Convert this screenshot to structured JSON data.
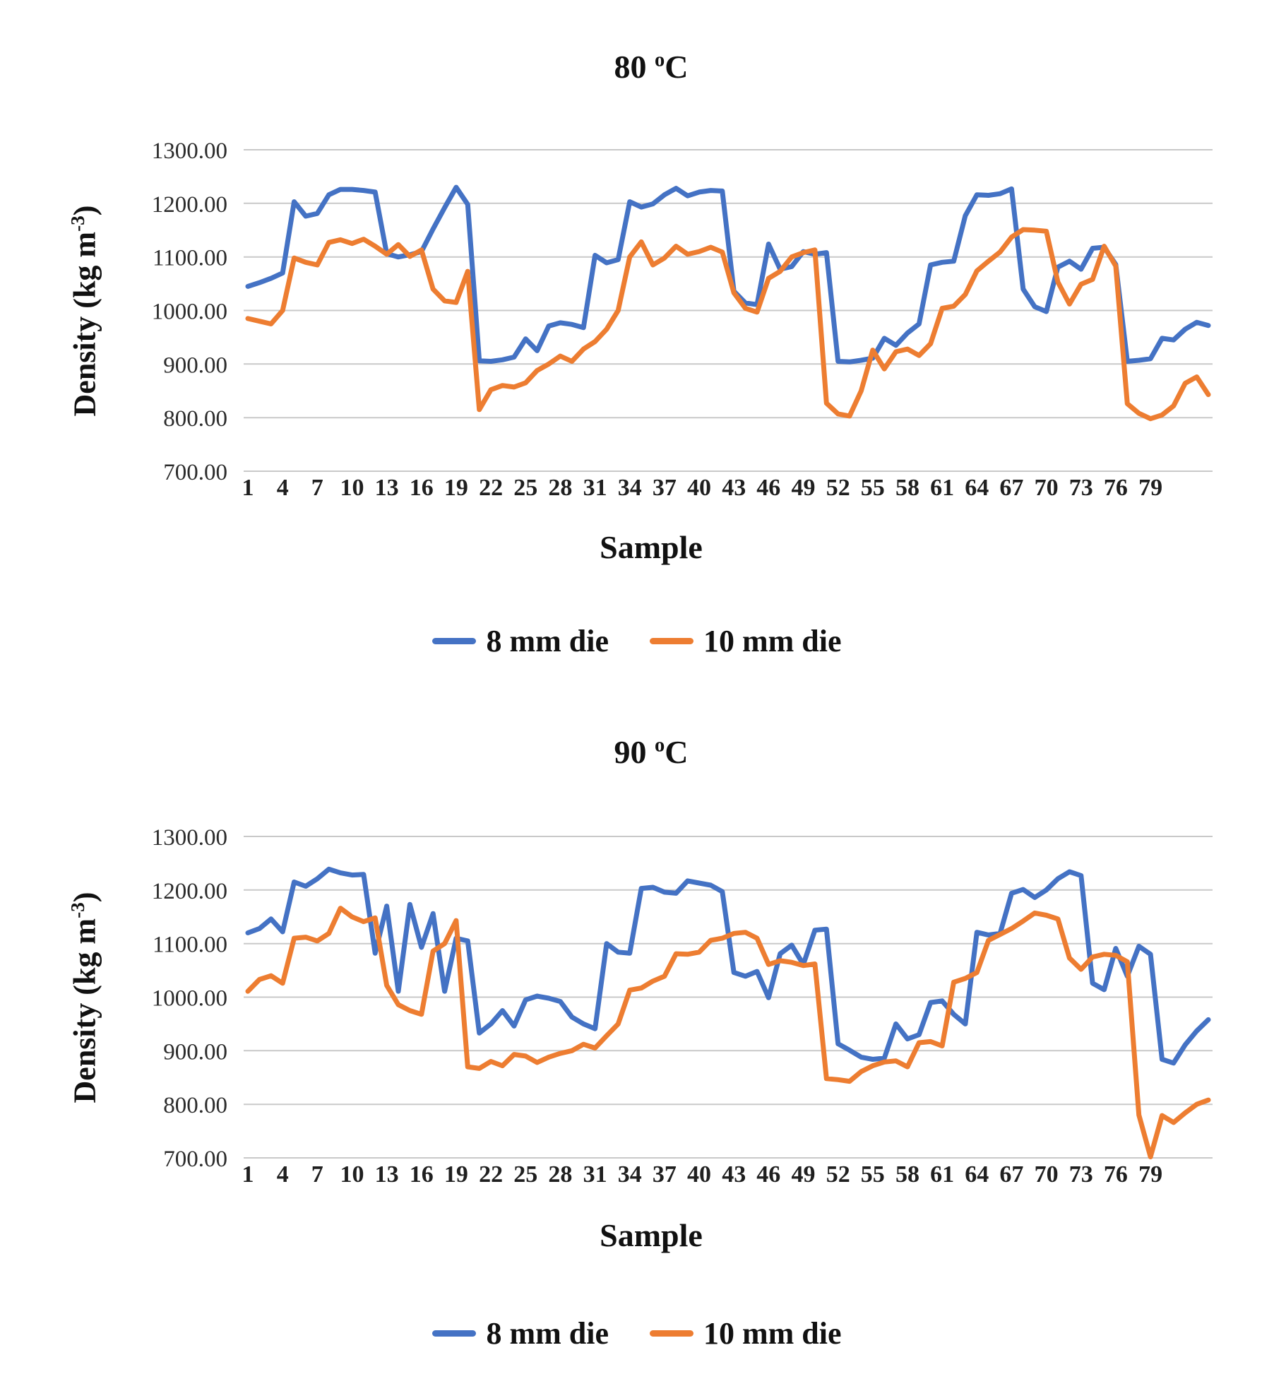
{
  "charts": [
    {
      "title_prefix": "80 ",
      "title_sup": "o",
      "title_suffix": "C",
      "y_axis": {
        "prefix": "Density (kg m",
        "sup": "-3",
        "suffix": ")"
      },
      "x_axis": {
        "label": "Sample"
      }
    },
    {
      "title_prefix": "90 ",
      "title_sup": "o",
      "title_suffix": "C",
      "y_axis": {
        "prefix": "Density (kg m",
        "sup": "-3",
        "suffix": ")"
      },
      "x_axis": {
        "label": "Sample"
      }
    }
  ],
  "chart_data": [
    {
      "type": "line",
      "title": "80 °C",
      "xlabel": "Sample",
      "ylabel": "Density (kg m-3)",
      "ylim": [
        700,
        1300
      ],
      "ytick_step": 100,
      "grid": true,
      "legend_position": "bottom",
      "x_ticks": [
        1,
        4,
        7,
        10,
        13,
        16,
        19,
        22,
        25,
        28,
        31,
        34,
        37,
        40,
        43,
        46,
        49,
        52,
        55,
        58,
        61,
        64,
        67,
        70,
        73,
        76,
        79
      ],
      "series": [
        {
          "name": "8 mm die",
          "color": "#4472C4",
          "values": [
            1045,
            1052,
            1060,
            1070,
            1203,
            1176,
            1181,
            1216,
            1226,
            1226,
            1224,
            1221,
            1106,
            1100,
            1104,
            1110,
            1152,
            1192,
            1230,
            1198,
            906,
            905,
            908,
            913,
            947,
            925,
            971,
            977,
            974,
            968,
            1103,
            1089,
            1095,
            1203,
            1193,
            1199,
            1216,
            1228,
            1214,
            1221,
            1224,
            1223,
            1036,
            1014,
            1011,
            1124,
            1077,
            1082,
            1110,
            1105,
            1108,
            905,
            904,
            907,
            911,
            948,
            935,
            958,
            975,
            1085,
            1090,
            1092,
            1177,
            1216,
            1215,
            1218,
            1227,
            1040,
            1007,
            998,
            1081,
            1092,
            1077,
            1116,
            1118,
            1086,
            905,
            907,
            910,
            948,
            945,
            965,
            978,
            972
          ]
        },
        {
          "name": "10 mm die",
          "color": "#ED7D31",
          "values": [
            985,
            980,
            975,
            1000,
            1098,
            1090,
            1085,
            1127,
            1132,
            1125,
            1133,
            1120,
            1105,
            1123,
            1101,
            1113,
            1040,
            1018,
            1015,
            1073,
            815,
            852,
            860,
            857,
            865,
            888,
            900,
            915,
            905,
            928,
            942,
            965,
            1000,
            1100,
            1128,
            1085,
            1098,
            1120,
            1105,
            1110,
            1118,
            1109,
            1033,
            1004,
            997,
            1060,
            1073,
            1100,
            1108,
            1113,
            827,
            807,
            803,
            850,
            926,
            891,
            923,
            928,
            916,
            938,
            1004,
            1008,
            1030,
            1074,
            1092,
            1109,
            1137,
            1151,
            1150,
            1148,
            1053,
            1012,
            1049,
            1058,
            1120,
            1083,
            826,
            808,
            798,
            805,
            822,
            864,
            876,
            843
          ]
        }
      ]
    },
    {
      "type": "line",
      "title": "90 °C",
      "xlabel": "Sample",
      "ylabel": "Density (kg m-3)",
      "ylim": [
        700,
        1300
      ],
      "ytick_step": 100,
      "grid": true,
      "legend_position": "bottom",
      "x_ticks": [
        1,
        4,
        7,
        10,
        13,
        16,
        19,
        22,
        25,
        28,
        31,
        34,
        37,
        40,
        43,
        46,
        49,
        52,
        55,
        58,
        61,
        64,
        67,
        70,
        73,
        76,
        79
      ],
      "series": [
        {
          "name": "8 mm die",
          "color": "#4472C4",
          "values": [
            1120,
            1128,
            1146,
            1122,
            1215,
            1207,
            1221,
            1239,
            1232,
            1228,
            1229,
            1082,
            1170,
            1011,
            1173,
            1093,
            1156,
            1011,
            1110,
            1105,
            933,
            950,
            975,
            946,
            995,
            1002,
            998,
            992,
            963,
            950,
            941,
            1100,
            1084,
            1082,
            1203,
            1205,
            1196,
            1194,
            1217,
            1213,
            1209,
            1197,
            1046,
            1039,
            1048,
            999,
            1081,
            1097,
            1061,
            1125,
            1127,
            913,
            901,
            888,
            884,
            886,
            950,
            922,
            930,
            990,
            993,
            968,
            950,
            1121,
            1116,
            1119,
            1194,
            1201,
            1186,
            1200,
            1221,
            1234,
            1227,
            1026,
            1014,
            1091,
            1039,
            1095,
            1080,
            884,
            877,
            911,
            937,
            958
          ]
        },
        {
          "name": "10 mm die",
          "color": "#ED7D31",
          "values": [
            1011,
            1033,
            1040,
            1026,
            1110,
            1112,
            1105,
            1119,
            1166,
            1150,
            1141,
            1148,
            1022,
            986,
            975,
            968,
            1086,
            1100,
            1143,
            870,
            867,
            880,
            872,
            893,
            890,
            878,
            888,
            895,
            900,
            912,
            905,
            928,
            950,
            1013,
            1017,
            1030,
            1039,
            1081,
            1080,
            1084,
            1106,
            1110,
            1119,
            1121,
            1110,
            1061,
            1068,
            1065,
            1059,
            1062,
            848,
            846,
            843,
            861,
            872,
            879,
            881,
            870,
            915,
            917,
            909,
            1028,
            1035,
            1046,
            1106,
            1117,
            1128,
            1142,
            1157,
            1153,
            1146,
            1073,
            1052,
            1075,
            1080,
            1078,
            1066,
            780,
            702,
            779,
            766,
            784,
            800,
            808
          ]
        }
      ]
    }
  ]
}
